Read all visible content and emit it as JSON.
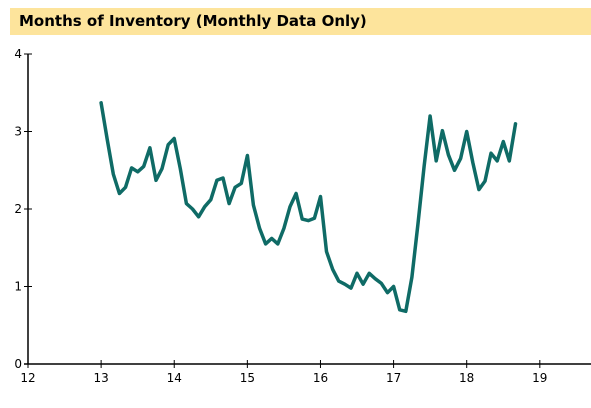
{
  "chart_data": {
    "type": "line",
    "title": "Months of Inventory (Monthly Data Only)",
    "xlabel": "",
    "ylabel": "",
    "xlim": [
      12,
      19.7
    ],
    "ylim": [
      0,
      4
    ],
    "x_ticks": [
      12,
      13,
      14,
      15,
      16,
      17,
      18,
      19
    ],
    "y_ticks": [
      0,
      1,
      2,
      3,
      4
    ],
    "grid": false,
    "line_color": "#0f6b66",
    "series": [
      {
        "x": [
          13.0,
          13.083,
          13.167,
          13.25,
          13.333,
          13.417,
          13.5,
          13.583,
          13.667,
          13.75,
          13.833,
          13.917,
          14.0,
          14.083,
          14.167,
          14.25,
          14.333,
          14.417,
          14.5,
          14.583,
          14.667,
          14.75,
          14.833,
          14.917,
          15.0,
          15.083,
          15.167,
          15.25,
          15.333,
          15.417,
          15.5,
          15.583,
          15.667,
          15.75,
          15.833,
          15.917,
          16.0,
          16.083,
          16.167,
          16.25,
          16.333,
          16.417,
          16.5,
          16.583,
          16.667,
          16.75,
          16.833,
          16.917,
          17.0,
          17.083,
          17.167,
          17.25,
          17.333,
          17.417,
          17.5,
          17.583,
          17.667,
          17.75,
          17.833,
          17.917,
          18.0,
          18.083,
          18.167,
          18.25,
          18.333,
          18.417,
          18.5,
          18.583,
          18.667
        ],
        "values": [
          3.37,
          2.9,
          2.45,
          2.2,
          2.28,
          2.53,
          2.48,
          2.55,
          2.79,
          2.37,
          2.52,
          2.83,
          2.91,
          2.52,
          2.07,
          2.0,
          1.9,
          2.03,
          2.12,
          2.37,
          2.4,
          2.07,
          2.28,
          2.33,
          2.69,
          2.05,
          1.75,
          1.55,
          1.62,
          1.55,
          1.75,
          2.03,
          2.2,
          1.87,
          1.85,
          1.88,
          2.16,
          1.45,
          1.22,
          1.07,
          1.03,
          0.98,
          1.17,
          1.03,
          1.17,
          1.1,
          1.04,
          0.92,
          1.0,
          0.7,
          0.68,
          1.12,
          1.8,
          2.55,
          3.2,
          2.62,
          3.01,
          2.7,
          2.5,
          2.65,
          3.0,
          2.6,
          2.25,
          2.36,
          2.72,
          2.62,
          2.87,
          2.62,
          3.1
        ]
      }
    ]
  }
}
